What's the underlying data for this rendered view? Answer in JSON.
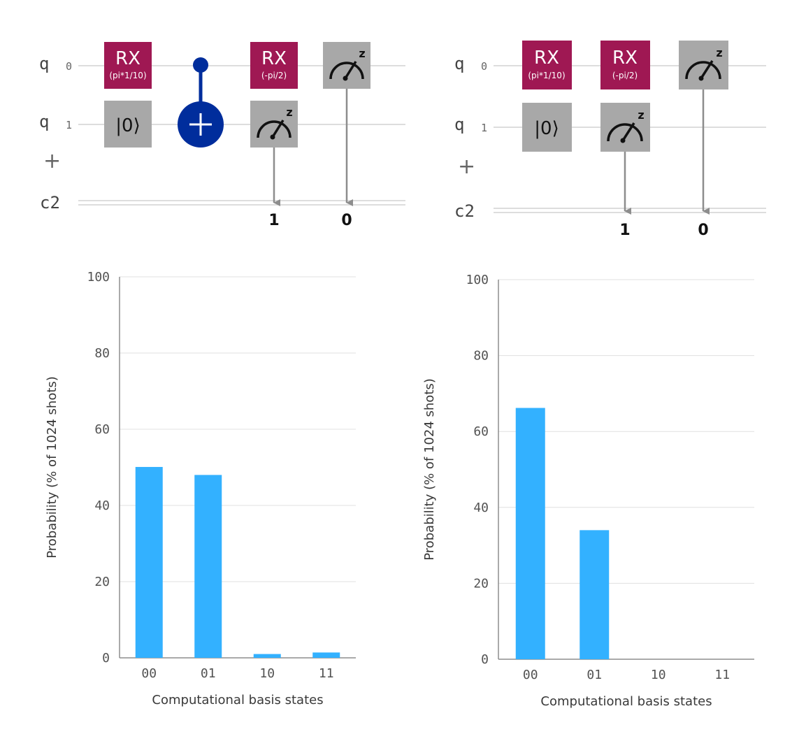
{
  "circuits": [
    {
      "qubit_labels": [
        {
          "name": "q",
          "index": "0"
        },
        {
          "name": "q",
          "index": "1"
        }
      ],
      "add_label": "+",
      "classical_label": "c2",
      "gates": {
        "rx1": {
          "label": "RX",
          "param": "(pi*1/10)"
        },
        "reset": {
          "label": "|0⟩"
        },
        "rx2": {
          "label": "RX",
          "param": "(-pi/2)"
        },
        "meas_q1": {
          "label": "z",
          "bit": "1"
        },
        "meas_q0": {
          "label": "z",
          "bit": "0"
        }
      }
    },
    {
      "qubit_labels": [
        {
          "name": "q",
          "index": "0"
        },
        {
          "name": "q",
          "index": "1"
        }
      ],
      "add_label": "+",
      "classical_label": "c2",
      "gates": {
        "rx1": {
          "label": "RX",
          "param": "(pi*1/10)"
        },
        "reset": {
          "label": "|0⟩"
        },
        "rx2": {
          "label": "RX",
          "param": "(-pi/2)"
        },
        "meas_q1": {
          "label": "z",
          "bit": "1"
        },
        "meas_q0": {
          "label": "z",
          "bit": "0"
        }
      }
    }
  ],
  "colors": {
    "rx_gate": "#9f1853",
    "gray_gate": "#a8a8a8",
    "cnot": "#002d9c",
    "bar": "#33b1ff",
    "wire": "#dddddd",
    "arrow": "#8d8d8d"
  },
  "chart_data": [
    {
      "type": "bar",
      "categories": [
        "00",
        "01",
        "10",
        "11"
      ],
      "values": [
        50.1,
        48.0,
        1.0,
        1.4
      ],
      "xlabel": "Computational basis states",
      "ylabel": "Probability (% of 1024 shots)",
      "ylim": [
        0,
        100
      ],
      "yticks": [
        "0",
        "20",
        "40",
        "60",
        "80",
        "100"
      ],
      "grid": true
    },
    {
      "type": "bar",
      "categories": [
        "00",
        "01",
        "10",
        "11"
      ],
      "values": [
        66.2,
        34.0,
        0,
        0
      ],
      "xlabel": "Computational basis states",
      "ylabel": "Probability (% of 1024 shots)",
      "ylim": [
        0,
        100
      ],
      "yticks": [
        "0",
        "20",
        "40",
        "60",
        "80",
        "100"
      ],
      "grid": true
    }
  ]
}
